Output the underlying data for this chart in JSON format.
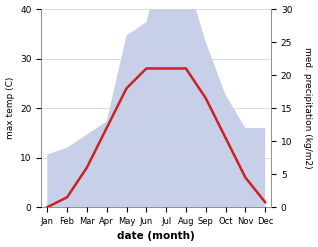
{
  "months": [
    "Jan",
    "Feb",
    "Mar",
    "Apr",
    "May",
    "Jun",
    "Jul",
    "Aug",
    "Sep",
    "Oct",
    "Nov",
    "Dec"
  ],
  "temperature": [
    0,
    2,
    8,
    16,
    24,
    28,
    28,
    28,
    22,
    14,
    6,
    1
  ],
  "precipitation": [
    8,
    9,
    11,
    13,
    26,
    28,
    40,
    35,
    25,
    17,
    12,
    12
  ],
  "temp_color": "#cc2222",
  "precip_fill_color": "#c8cfe8",
  "temp_ylim": [
    0,
    40
  ],
  "precip_ylim": [
    0,
    30
  ],
  "xlabel": "date (month)",
  "ylabel_left": "max temp (C)",
  "ylabel_right": "med. precipitation (kg/m2)",
  "background_color": "#ffffff",
  "fig_width": 3.18,
  "fig_height": 2.47,
  "dpi": 100,
  "temp_yticks": [
    0,
    10,
    20,
    30,
    40
  ],
  "precip_yticks": [
    0,
    5,
    10,
    15,
    20,
    25,
    30
  ]
}
